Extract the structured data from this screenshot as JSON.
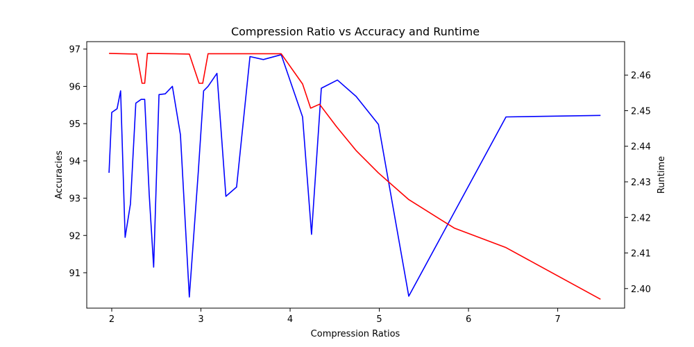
{
  "chart_data": {
    "type": "line",
    "title": "Compression Ratio vs Accuracy and Runtime",
    "xlabel": "Compression Ratios",
    "ylabel_left": "Accuracies",
    "ylabel_right": "Runtime",
    "xlim": [
      1.72,
      7.75
    ],
    "ylim_left": [
      90.05,
      97.2
    ],
    "ylim_right": [
      2.3945,
      2.4694
    ],
    "xticks": [
      2,
      3,
      4,
      5,
      6,
      7
    ],
    "yticks_left": [
      91,
      92,
      93,
      94,
      95,
      96,
      97
    ],
    "yticks_right": [
      2.4,
      2.41,
      2.42,
      2.43,
      2.44,
      2.45,
      2.46
    ],
    "grid": false,
    "series": [
      {
        "axis": "left",
        "color": "#0000ff",
        "x": [
          1.97,
          2.0,
          2.06,
          2.1,
          2.15,
          2.21,
          2.27,
          2.33,
          2.37,
          2.42,
          2.47,
          2.53,
          2.6,
          2.68,
          2.77,
          2.87,
          2.97,
          3.03,
          3.08,
          3.18,
          3.28,
          3.4,
          3.55,
          3.7,
          3.9,
          4.14,
          4.24,
          4.35,
          4.53,
          4.74,
          4.99,
          5.33,
          6.42,
          7.48
        ],
        "y": [
          93.68,
          95.3,
          95.4,
          95.88,
          91.95,
          92.85,
          95.55,
          95.65,
          95.65,
          93.1,
          91.15,
          95.78,
          95.8,
          96.0,
          94.7,
          90.35,
          93.7,
          95.88,
          96.0,
          96.35,
          93.05,
          93.3,
          96.8,
          96.72,
          96.85,
          95.18,
          92.03,
          95.95,
          96.17,
          95.73,
          94.98,
          90.37,
          95.18,
          95.22
        ]
      },
      {
        "axis": "right",
        "color": "#ff0000",
        "x": [
          1.97,
          2.28,
          2.34,
          2.37,
          2.4,
          2.87,
          2.98,
          3.02,
          3.08,
          3.9,
          4.14,
          4.23,
          4.33,
          4.52,
          4.74,
          4.99,
          5.33,
          5.84,
          6.42,
          7.48
        ],
        "y": [
          2.4661,
          2.4659,
          2.4577,
          2.4577,
          2.4661,
          2.4659,
          2.4577,
          2.4577,
          2.466,
          2.466,
          2.4575,
          2.4507,
          2.4518,
          2.4455,
          2.4388,
          2.4325,
          2.425,
          2.417,
          2.4115,
          2.397
        ]
      }
    ]
  }
}
